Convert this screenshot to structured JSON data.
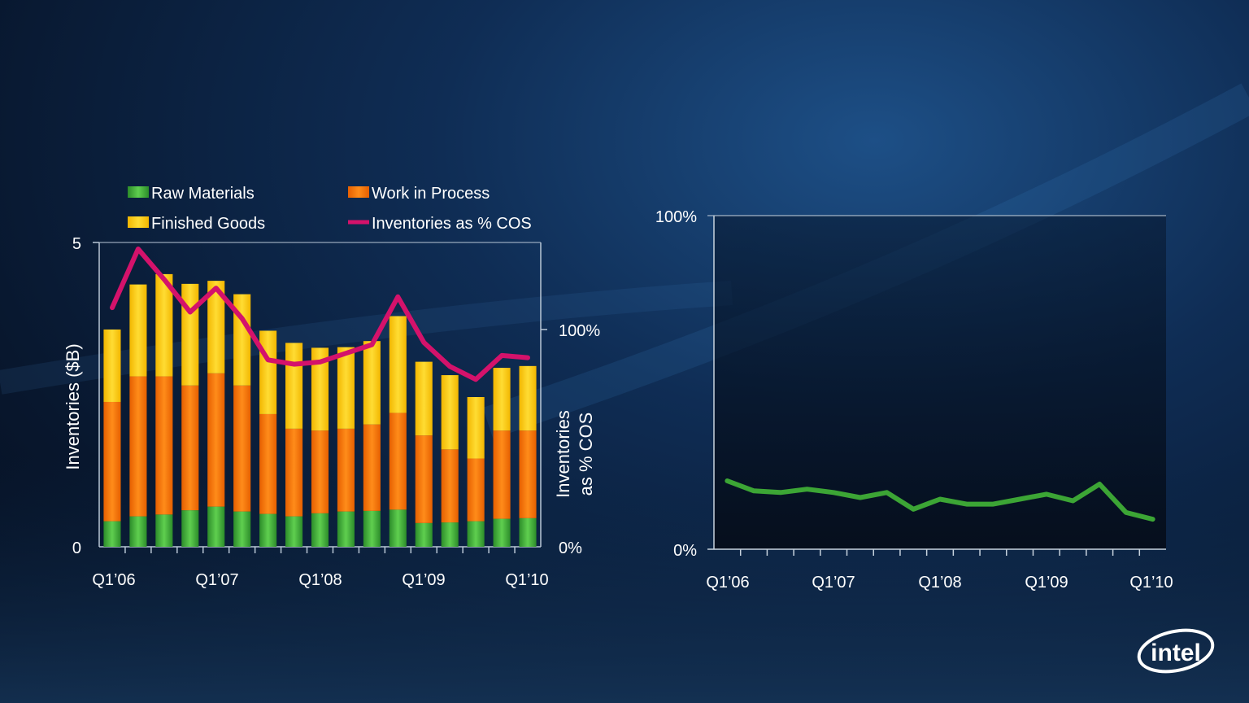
{
  "colors": {
    "raw_materials": "#3fae3a",
    "work_in_process": "#ff7a00",
    "finished_goods": "#ffcc00",
    "inventories_pct_cos": "#d4126b",
    "right_line": "#3ca535"
  },
  "logo": {
    "text": "intel"
  },
  "chart_data": [
    {
      "type": "bar",
      "stacked": true,
      "ylabel": "Inventories ($B)",
      "y2label_line1": "Inventories",
      "y2label_line2": "as % COS",
      "y_ticks": [
        "5",
        "0"
      ],
      "ylim": [
        0,
        5
      ],
      "y2_ticks": [
        "100%",
        "0%"
      ],
      "y2lim": [
        0,
        140
      ],
      "x_tick_labels": [
        "Q1’06",
        "Q1’07",
        "Q1’08",
        "Q1’09",
        "Q1’10"
      ],
      "legend": [
        "Raw Materials",
        "Work in Process",
        "Finished Goods",
        "Inventories as % COS"
      ],
      "legend_position": "top",
      "series": [
        {
          "name": "Raw Materials",
          "values": [
            0.42,
            0.5,
            0.53,
            0.6,
            0.66,
            0.58,
            0.54,
            0.5,
            0.55,
            0.58,
            0.59,
            0.61,
            0.39,
            0.4,
            0.42,
            0.46,
            0.47
          ]
        },
        {
          "name": "Work in Process",
          "values": [
            1.96,
            2.3,
            2.27,
            2.05,
            2.19,
            2.07,
            1.64,
            1.44,
            1.36,
            1.36,
            1.42,
            1.59,
            1.44,
            1.2,
            1.03,
            1.45,
            1.44
          ]
        },
        {
          "name": "Finished Goods",
          "values": [
            1.19,
            1.51,
            1.68,
            1.67,
            1.52,
            1.5,
            1.37,
            1.41,
            1.36,
            1.34,
            1.37,
            1.59,
            1.21,
            1.22,
            1.01,
            1.03,
            1.06
          ]
        },
        {
          "name": "Inventories as % COS",
          "type": "line",
          "values": [
            110,
            137,
            123,
            108,
            119,
            105,
            86,
            84,
            85,
            89,
            93,
            115,
            94,
            83,
            77,
            88,
            87
          ]
        }
      ]
    },
    {
      "type": "line",
      "y_ticks": [
        "100%",
        "0%"
      ],
      "ylim": [
        0,
        100
      ],
      "x_tick_labels": [
        "Q1’06",
        "Q1’07",
        "Q1’08",
        "Q1’09",
        "Q1’10"
      ],
      "series": [
        {
          "values": [
            20.5,
            17.5,
            17,
            18,
            17,
            15.5,
            17,
            12,
            15,
            13.5,
            13.5,
            15,
            16.5,
            14.5,
            19.5,
            11,
            9
          ]
        }
      ]
    }
  ]
}
